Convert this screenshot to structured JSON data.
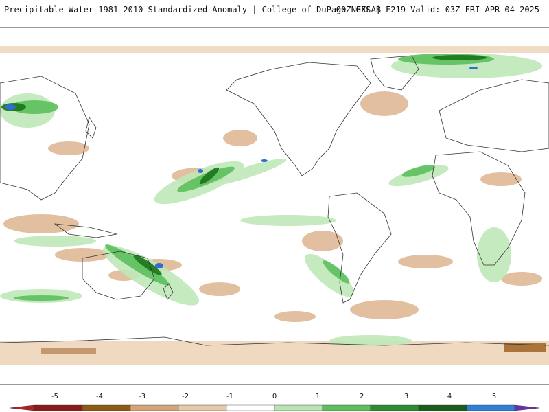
{
  "header": {
    "title": "Precipitable Water 1981-2010 Standardized Anomaly | College of DuPage NEXLAB",
    "run_info": "00Z GFS | F219 Valid: 03Z FRI APR 04 2025"
  },
  "map": {
    "projection": "global lat/lon",
    "field": "precipitable water standardized anomaly"
  },
  "legend": {
    "ticks": [
      "-5",
      "-4",
      "-3",
      "-2",
      "-1",
      "0",
      "1",
      "2",
      "3",
      "4",
      "5"
    ],
    "colors": [
      "#b22222",
      "#8b1a1a",
      "#8b5a14",
      "#d2a679",
      "#e6c9a8",
      "#ffffff",
      "#b7e4b0",
      "#5cbf5c",
      "#2e8b2e",
      "#1a5c1a",
      "#2f7fd6",
      "#6a2fb5"
    ]
  },
  "colors": {
    "positive_light": "#bfe8b8",
    "positive_mid": "#6cc56c",
    "positive_dark": "#1f7a1f",
    "positive_extreme": "#2f6fd0",
    "negative_light": "#ecd3b6",
    "negative_mid": "#d3a57a",
    "negative_dark": "#9a5a18",
    "coastline": "#333333"
  }
}
